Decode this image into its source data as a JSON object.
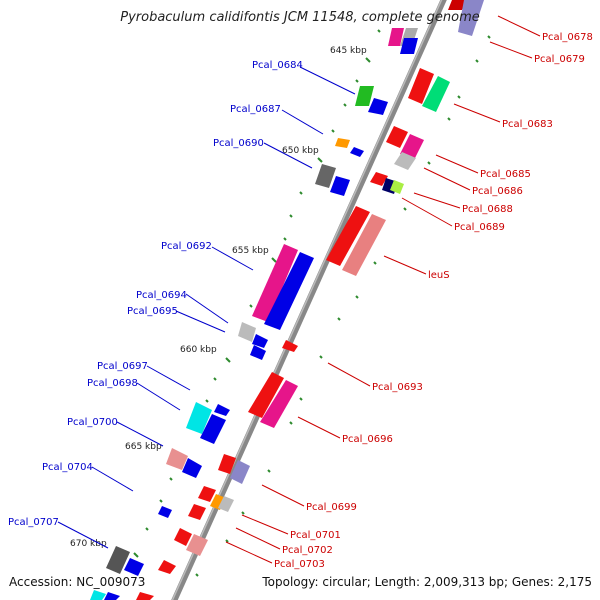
{
  "title": "Pyrobaculum calidifontis JCM 11548, complete genome",
  "footer": {
    "accession": "Accession: NC_009073",
    "topology": "Topology: circular; Length: 2,009,313 bp; Genes: 2,175"
  },
  "colors": {
    "left_label": "#0000cc",
    "right_label": "#cc0000",
    "backbone": "#777777",
    "tick": "#2e8b2e"
  },
  "kbp_marks": [
    "645 kbp",
    "650 kbp",
    "655 kbp",
    "660 kbp",
    "665 kbp",
    "670 kbp"
  ],
  "left_labels": [
    "Pcal_0684",
    "Pcal_0687",
    "Pcal_0690",
    "Pcal_0692",
    "Pcal_0694",
    "Pcal_0695",
    "Pcal_0697",
    "Pcal_0698",
    "Pcal_0700",
    "Pcal_0704",
    "Pcal_0707"
  ],
  "right_labels": [
    "Pcal_0678",
    "Pcal_0679",
    "Pcal_0683",
    "Pcal_0685",
    "Pcal_0686",
    "Pcal_0688",
    "Pcal_0689",
    "leuS",
    "Pcal_0693",
    "Pcal_0696",
    "Pcal_0699",
    "Pcal_0701",
    "Pcal_0702",
    "Pcal_0703"
  ],
  "genes": [
    {
      "id": "g_0678",
      "color": "#cc0000"
    },
    {
      "id": "g_0679",
      "color": "#8a86c8"
    },
    {
      "id": "g_0684",
      "color": "#22bb22"
    },
    {
      "id": "g_0687",
      "color": "#ff9900"
    },
    {
      "id": "g_0690",
      "color": "#666666"
    },
    {
      "id": "g_0692",
      "color": "#e6158a"
    },
    {
      "id": "g_0694",
      "color": "#bbbbbb"
    },
    {
      "id": "g_0697",
      "color": "#00e5e5"
    },
    {
      "id": "g_0698",
      "color": "#0000e6"
    },
    {
      "id": "g_0700",
      "color": "#e89090"
    },
    {
      "id": "g_0707",
      "color": "#555555"
    },
    {
      "id": "g_0683",
      "color": "#00dd77"
    },
    {
      "id": "g_0685",
      "color": "#e6158a"
    },
    {
      "id": "g_0686",
      "color": "#bbbbbb"
    },
    {
      "id": "g_0688",
      "color": "#aaee44"
    },
    {
      "id": "g_0689",
      "color": "#000066"
    },
    {
      "id": "leuS",
      "color": "#e88080"
    },
    {
      "id": "g_0693",
      "color": "#ee1111"
    },
    {
      "id": "g_0696",
      "color": "#e6158a"
    },
    {
      "id": "g_0699",
      "color": "#8a86c8"
    },
    {
      "id": "g_0701",
      "color": "#ff9900"
    },
    {
      "id": "g_0702",
      "color": "#e89090"
    },
    {
      "id": "g_0703",
      "color": "#ee1111"
    }
  ]
}
